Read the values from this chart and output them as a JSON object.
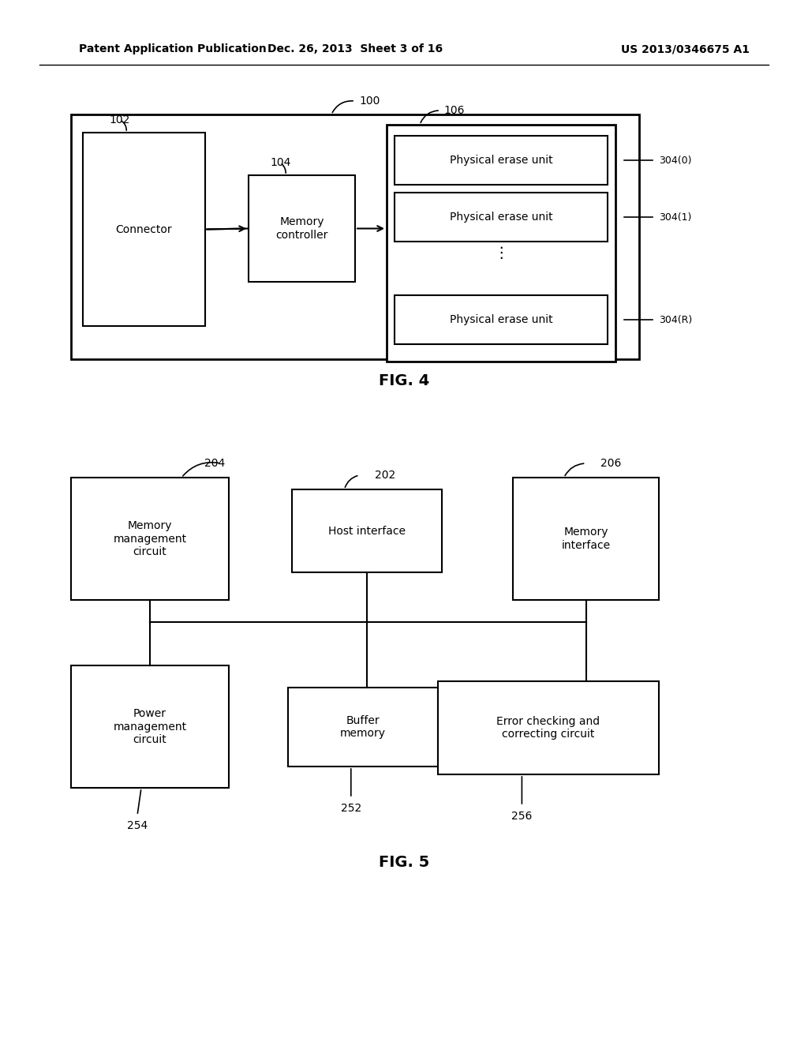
{
  "bg_color": "#ffffff",
  "header_left": "Patent Application Publication",
  "header_mid": "Dec. 26, 2013  Sheet 3 of 16",
  "header_right": "US 2013/0346675 A1",
  "fig4_label": "FIG. 4",
  "fig5_label": "FIG. 5"
}
